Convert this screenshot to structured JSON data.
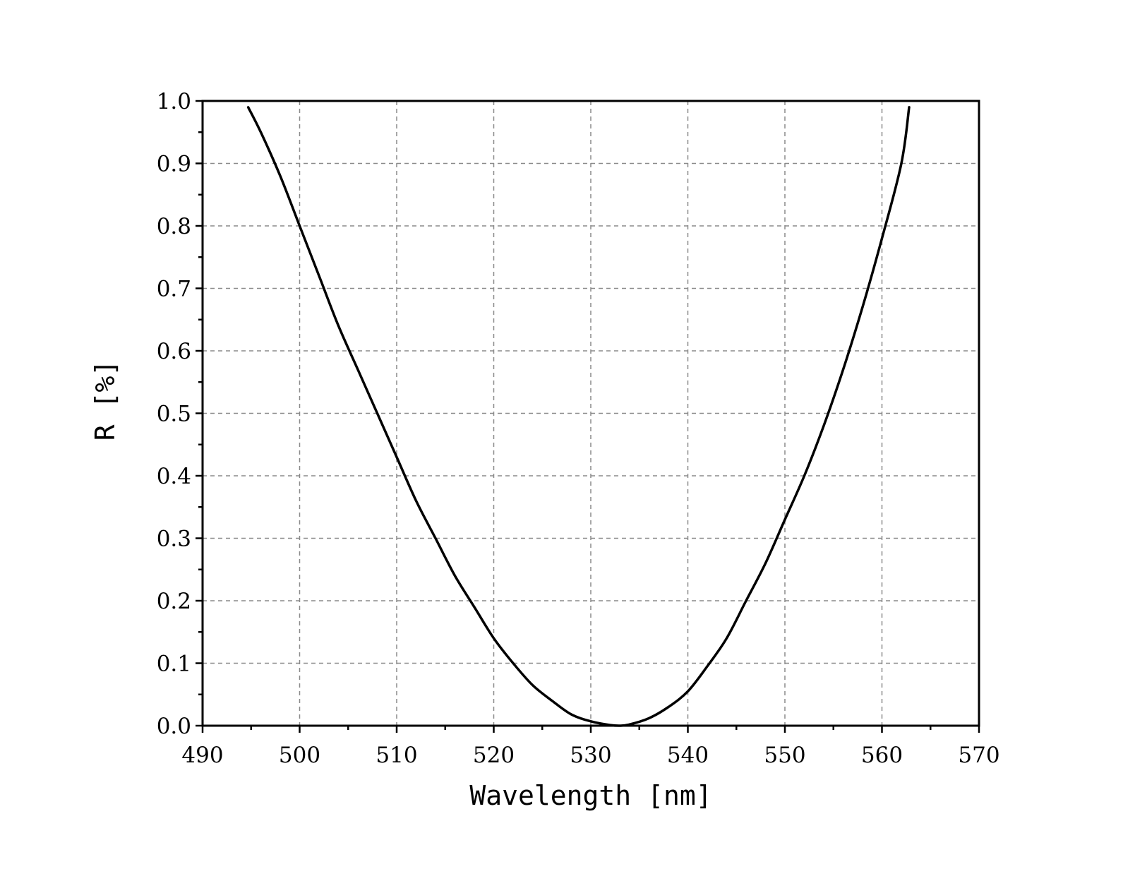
{
  "chart_data": {
    "type": "line",
    "title": "",
    "xlabel": "Wavelength [nm]",
    "ylabel": "R [%]",
    "xlim": [
      490,
      570
    ],
    "ylim": [
      0.0,
      1.0
    ],
    "x_ticks": [
      "490",
      "500",
      "510",
      "520",
      "530",
      "540",
      "550",
      "560",
      "570"
    ],
    "y_ticks": [
      "0.0",
      "0.1",
      "0.2",
      "0.3",
      "0.4",
      "0.5",
      "0.6",
      "0.7",
      "0.8",
      "0.9",
      "1.0"
    ],
    "grid": true,
    "legend": "none",
    "line_color": "#000000",
    "series": [
      {
        "x": [
          494.7,
          496,
          498,
          500,
          502,
          504,
          506,
          508,
          510,
          512,
          514,
          516,
          518,
          520,
          522,
          524,
          526,
          528,
          530,
          532,
          533,
          534,
          536,
          538,
          540,
          542,
          544,
          546,
          548,
          550,
          552,
          554,
          556,
          558,
          560,
          562,
          562.8
        ],
        "y": [
          0.99,
          0.95,
          0.88,
          0.8,
          0.72,
          0.64,
          0.57,
          0.5,
          0.43,
          0.36,
          0.3,
          0.24,
          0.19,
          0.14,
          0.1,
          0.065,
          0.04,
          0.018,
          0.007,
          0.001,
          0.0,
          0.002,
          0.012,
          0.03,
          0.055,
          0.095,
          0.14,
          0.2,
          0.26,
          0.33,
          0.4,
          0.48,
          0.57,
          0.67,
          0.78,
          0.9,
          0.99
        ]
      }
    ]
  }
}
